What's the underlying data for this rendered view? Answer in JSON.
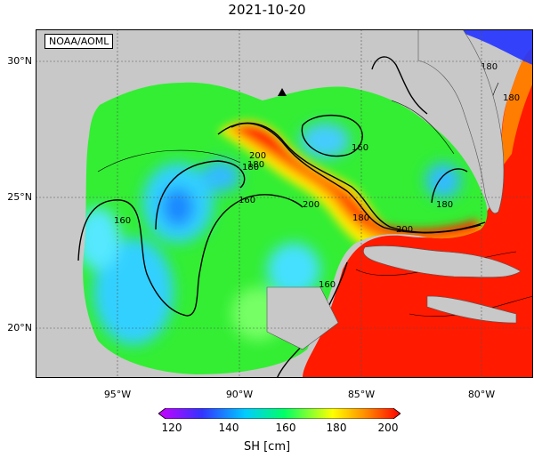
{
  "title": "2021-10-20",
  "credit": "NOAA/AOML",
  "axes": {
    "lon_ticks": [
      "95°W",
      "90°W",
      "85°W",
      "80°W"
    ],
    "lat_ticks": [
      "30°N",
      "25°N",
      "20°N"
    ]
  },
  "contour_labels": [
    "160",
    "180",
    "200",
    "180",
    "160",
    "200",
    "180",
    "160",
    "200",
    "180",
    "180",
    "160",
    "180"
  ],
  "colorbar": {
    "ticks": [
      "120",
      "140",
      "160",
      "180",
      "200"
    ],
    "label": "SH [cm]",
    "colors": [
      "#cc00ff",
      "#3333ff",
      "#00ccff",
      "#00ff66",
      "#ffff00",
      "#ff8800",
      "#ff0000"
    ]
  },
  "colors": {
    "land": "#c8c8c8",
    "high": "#ff1a00",
    "mid": "#33ee33",
    "low": "#33d0ff"
  }
}
